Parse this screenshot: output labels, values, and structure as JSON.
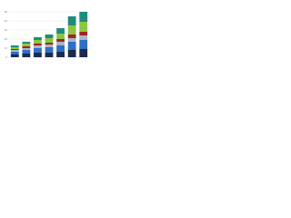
{
  "chart_data": {
    "type": "stacked_bar",
    "categories": [
      null,
      null,
      null,
      null,
      null,
      null,
      null
    ],
    "series": [
      {
        "color": "#1b2a4e",
        "values": [
          3,
          4,
          5,
          5,
          6,
          8,
          9
        ]
      },
      {
        "color": "#2e6fc7",
        "values": [
          3,
          4,
          5,
          6,
          7,
          9,
          10
        ]
      },
      {
        "color": "#a9b6c4",
        "values": [
          2,
          2,
          3,
          3,
          4,
          4,
          5
        ]
      },
      {
        "color": "#a02323",
        "values": [
          1,
          2,
          2,
          2,
          3,
          4,
          4
        ]
      },
      {
        "color": "#8cc63f",
        "values": [
          2,
          3,
          4,
          5,
          6,
          10,
          11
        ]
      },
      {
        "color": "#1e8c7c",
        "values": [
          2,
          2,
          3,
          4,
          6,
          10,
          11
        ]
      }
    ],
    "ylim": [
      0,
      55
    ],
    "yticks": [
      0,
      10,
      20,
      30,
      40,
      50
    ],
    "grid": true
  }
}
